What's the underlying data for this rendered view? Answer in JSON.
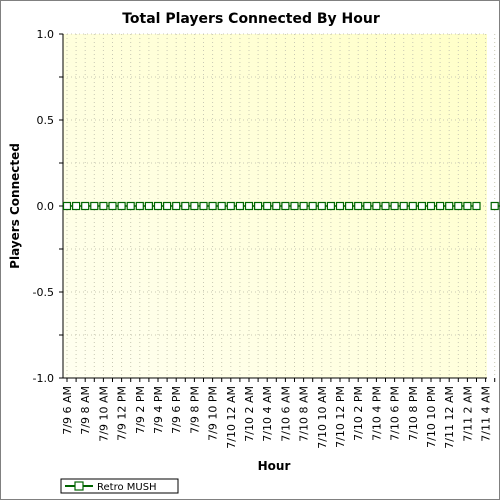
{
  "chart_data": {
    "type": "line",
    "title": "Total Players Connected By Hour",
    "xlabel": "Hour",
    "ylabel": "Players Connected",
    "ylim": [
      -1.0,
      1.0
    ],
    "y_ticks": [
      "1.0",
      "0.5",
      "0.0",
      "-0.5",
      "-1.0"
    ],
    "x_tick_labels": [
      "7/9 6 AM",
      "7/9 8 AM",
      "7/9 10 AM",
      "7/9 12 PM",
      "7/9 2 PM",
      "7/9 4 PM",
      "7/9 6 PM",
      "7/9 8 PM",
      "7/9 10 PM",
      "7/10 12 AM",
      "7/10 2 AM",
      "7/10 4 AM",
      "7/10 6 AM",
      "7/10 8 AM",
      "7/10 10 AM",
      "7/10 12 PM",
      "7/10 2 PM",
      "7/10 4 PM",
      "7/10 6 PM",
      "7/10 8 PM",
      "7/10 10 PM",
      "7/11 12 AM",
      "7/11 2 AM",
      "7/11 4 AM"
    ],
    "grid": true,
    "legend_placement": "bottom-left",
    "series": [
      {
        "name": "Retro MUSH",
        "color": "#006400",
        "values": [
          0,
          0,
          0,
          0,
          0,
          0,
          0,
          0,
          0,
          0,
          0,
          0,
          0,
          0,
          0,
          0,
          0,
          0,
          0,
          0,
          0,
          0,
          0,
          0,
          0,
          0,
          0,
          0,
          0,
          0,
          0,
          0,
          0,
          0,
          0,
          0,
          0,
          0,
          0,
          0,
          0,
          0,
          0,
          0,
          0,
          0,
          null,
          0,
          0,
          0
        ]
      }
    ]
  }
}
